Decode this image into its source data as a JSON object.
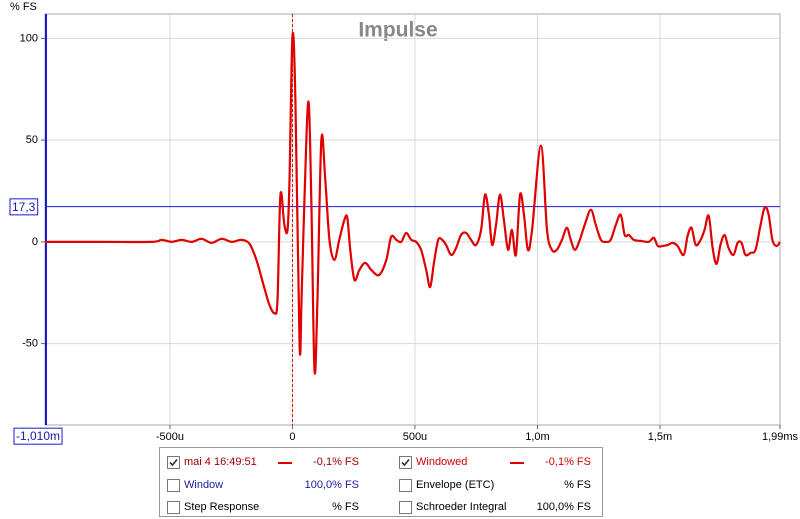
{
  "chart_data": {
    "type": "line",
    "title": "Impulse",
    "ylabel": "% FS",
    "xlim": [
      -1.01,
      1.99
    ],
    "ylim": [
      -90,
      112
    ],
    "xticks": [
      {
        "value": -0.5,
        "label": "-500u"
      },
      0,
      {
        "value": 0.5,
        "label": "500u"
      },
      {
        "value": 1.0,
        "label": "1,0m"
      },
      {
        "value": 1.5,
        "label": "1,5m"
      },
      {
        "value": 1.99,
        "label": "1,99ms"
      }
    ],
    "yticks": [
      -50,
      0,
      50,
      100
    ],
    "grid": true,
    "reference_x": 0,
    "cursor": {
      "x": {
        "value": -1.01,
        "label": "-1,010m"
      },
      "y": {
        "value": 17.3,
        "label": "17,3"
      }
    },
    "x": [
      -1.01,
      -0.778,
      -0.574,
      -0.534,
      -0.493,
      -0.452,
      -0.411,
      -0.371,
      -0.33,
      -0.289,
      -0.248,
      -0.208,
      -0.175,
      -0.147,
      -0.118,
      -0.094,
      -0.073,
      -0.061,
      -0.049,
      -0.033,
      -0.02,
      -0.012,
      0,
      0.012,
      0.029,
      0.037,
      0.049,
      0.065,
      0.077,
      0.09,
      0.102,
      0.118,
      0.134,
      0.151,
      0.171,
      0.191,
      0.212,
      0.224,
      0.236,
      0.253,
      0.273,
      0.297,
      0.322,
      0.354,
      0.383,
      0.403,
      0.424,
      0.444,
      0.464,
      0.485,
      0.505,
      0.525,
      0.546,
      0.562,
      0.578,
      0.595,
      0.611,
      0.627,
      0.648,
      0.668,
      0.688,
      0.709,
      0.729,
      0.749,
      0.77,
      0.786,
      0.802,
      0.815,
      0.831,
      0.847,
      0.863,
      0.88,
      0.896,
      0.912,
      0.929,
      0.945,
      0.961,
      0.978,
      1.014,
      1.039,
      1.059,
      1.079,
      1.1,
      1.12,
      1.136,
      1.153,
      1.173,
      1.193,
      1.218,
      1.238,
      1.259,
      1.279,
      1.299,
      1.32,
      1.34,
      1.356,
      1.373,
      1.393,
      1.421,
      1.454,
      1.475,
      1.491,
      1.511,
      1.532,
      1.552,
      1.572,
      1.597,
      1.613,
      1.629,
      1.646,
      1.666,
      1.682,
      1.699,
      1.715,
      1.731,
      1.747,
      1.764,
      1.78,
      1.8,
      1.817,
      1.833,
      1.849,
      1.87,
      1.89,
      1.91,
      1.927,
      1.943,
      1.959,
      1.976,
      1.99
    ],
    "series": [
      {
        "name": "mai 4 16:49:51",
        "color": "#e00000",
        "values": [
          0,
          0,
          0,
          1.0,
          0,
          1.0,
          0,
          1.5,
          -0.5,
          1.5,
          0,
          1.0,
          -1.0,
          -8.9,
          -21.2,
          -31.0,
          -35.0,
          -28.6,
          23.2,
          8.4,
          5.9,
          30.5,
          101.0,
          69.9,
          -50.2,
          -28.6,
          20.7,
          69.0,
          20.7,
          -63.1,
          -28.6,
          50.2,
          30.5,
          1.0,
          -8.9,
          1.0,
          10.8,
          11.8,
          -3.9,
          -18.7,
          -13.8,
          -10.3,
          -13.8,
          -16.3,
          -8.9,
          2.5,
          1.0,
          0,
          4.4,
          1.0,
          0,
          -3.9,
          -13.8,
          -22.2,
          -9.9,
          1.0,
          1.0,
          -1.5,
          -6.4,
          -3.0,
          3.4,
          4.4,
          1.0,
          -1.5,
          5.9,
          23.2,
          13.3,
          -1.5,
          8.4,
          23.2,
          10.8,
          -3.9,
          5.9,
          -6.4,
          23.2,
          13.3,
          -3.9,
          5.9,
          47.3,
          5.9,
          -3.9,
          -3.9,
          1.0,
          6.9,
          1.0,
          -3.9,
          1.0,
          8.4,
          15.8,
          8.4,
          1.0,
          0,
          1.0,
          8.4,
          13.3,
          3.4,
          3.4,
          1.0,
          0.5,
          0,
          2.0,
          -2.0,
          -2.0,
          -1.5,
          -0.5,
          -2.0,
          -6.4,
          3.0,
          6.9,
          -1.5,
          1.0,
          5.9,
          12.8,
          -3.0,
          -10.8,
          -1.5,
          3.4,
          -3.0,
          -6.4,
          -0.5,
          -0.5,
          -6.4,
          -5.4,
          -3.9,
          7.9,
          16.7,
          13.8,
          1.0,
          -2.0,
          0
        ]
      }
    ],
    "legend": {
      "items": [
        {
          "name": "mai 4 16:49:51",
          "value": "-0,1% FS",
          "checked": true,
          "color": "#a00000",
          "line": "#e00000"
        },
        {
          "name": "Windowed",
          "value": "-0,1% FS",
          "checked": true,
          "color": "#d00000",
          "line": "#e00000"
        },
        {
          "name": "Window",
          "value": "100,0% FS",
          "checked": false,
          "color": "#1a1aa0"
        },
        {
          "name": "Envelope (ETC)",
          "value": "% FS",
          "checked": false,
          "color": "#000000"
        },
        {
          "name": "Step Response",
          "value": "% FS",
          "checked": false,
          "color": "#000000"
        },
        {
          "name": "Schroeder Integral",
          "value": "100,0% FS",
          "checked": false,
          "color": "#000000"
        }
      ]
    }
  }
}
